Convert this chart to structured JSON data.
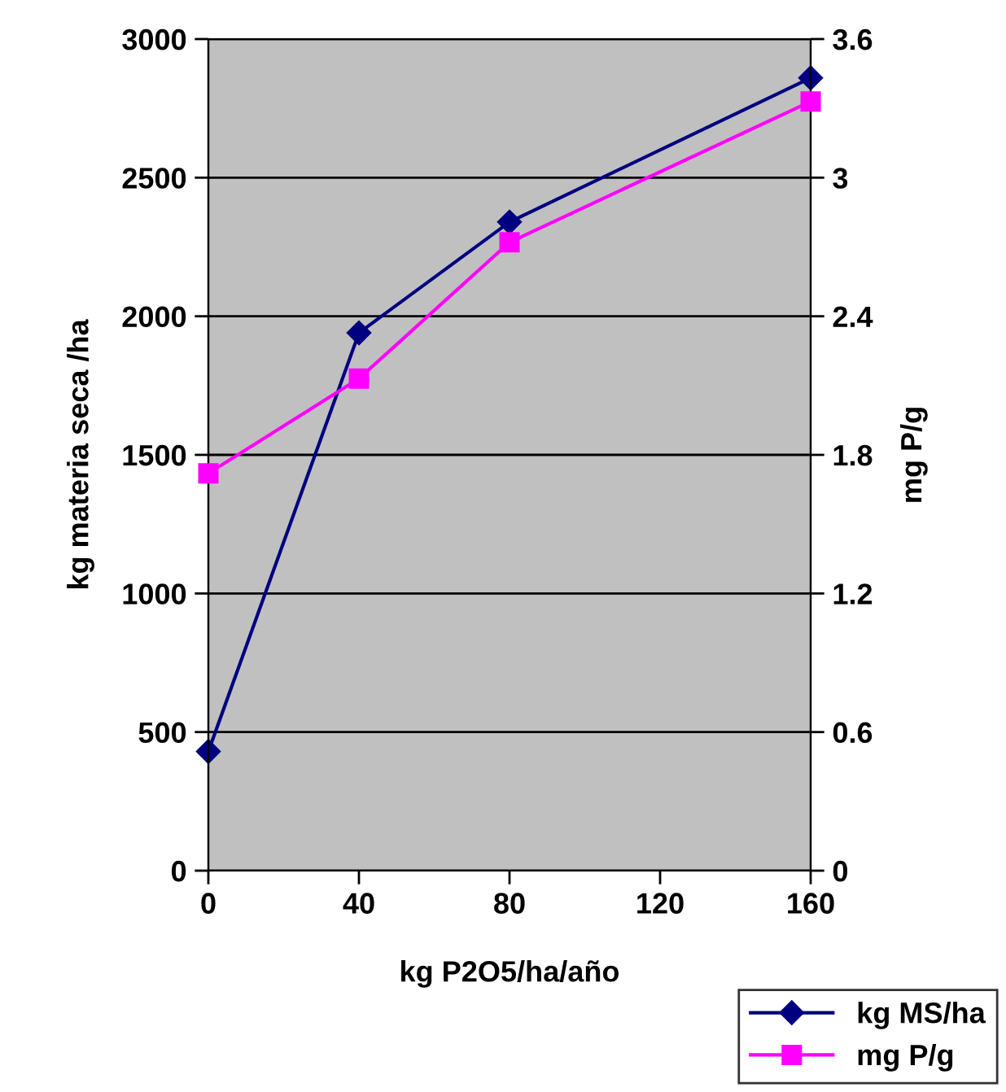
{
  "chart_data": {
    "type": "line",
    "xlabel": "kg P2O5/ha/año",
    "ylabel": "kg materia seca /ha",
    "y2label": "mg P/g",
    "x": [
      0,
      40,
      80,
      160
    ],
    "xlim": [
      0,
      160
    ],
    "xticks": [
      0,
      40,
      80,
      120,
      160
    ],
    "ylim": [
      0,
      3000
    ],
    "yticks": [
      0,
      500,
      1000,
      1500,
      2000,
      2500,
      3000
    ],
    "y2lim": [
      0,
      3.6
    ],
    "y2ticks": [
      {
        "value": 0,
        "label": "0"
      },
      0.6,
      1.2,
      1.8,
      2.4,
      3,
      3.6
    ],
    "series": [
      {
        "name": "kg MS/ha",
        "color": "#000080",
        "marker": "diamond",
        "values": [
          430,
          1940,
          2340,
          2860
        ]
      },
      {
        "name": "mg P/g",
        "color": "#ff00ff",
        "marker": "square",
        "axis": "y2",
        "values": [
          1.72,
          2.13,
          2.72,
          3.33
        ]
      }
    ],
    "grid": "y",
    "legend": "bottom right",
    "line_style": "solid"
  }
}
